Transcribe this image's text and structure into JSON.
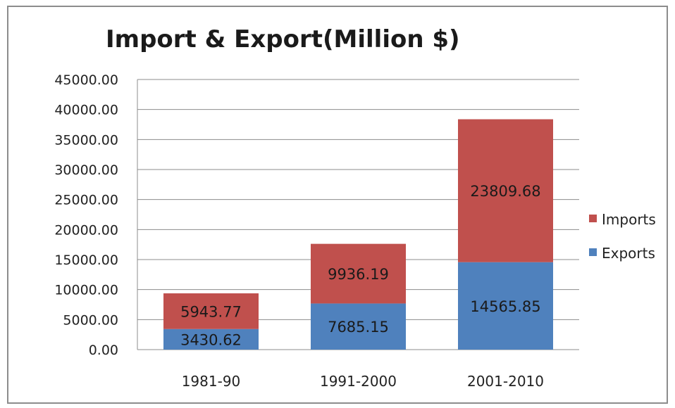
{
  "chart_data": {
    "type": "bar",
    "stacked": true,
    "title": "Import & Export(Million $)",
    "xlabel": "",
    "ylabel": "",
    "categories": [
      "1981-90",
      "1991-2000",
      "2001-2010"
    ],
    "series": [
      {
        "name": "Exports",
        "values": [
          3430.62,
          7685.15,
          14565.85
        ],
        "value_labels": [
          "3430.62",
          "7685.15",
          "14565.85"
        ],
        "color": "#4f81bd"
      },
      {
        "name": "Imports",
        "values": [
          5943.77,
          9936.19,
          23809.68
        ],
        "value_labels": [
          "5943.77",
          "9936.19",
          "23809.68"
        ],
        "color": "#c0504d"
      }
    ],
    "ylim": [
      0,
      45000
    ],
    "yticks": [
      "0.00",
      "5000.00",
      "10000.00",
      "15000.00",
      "20000.00",
      "25000.00",
      "30000.00",
      "35000.00",
      "40000.00",
      "45000.00"
    ],
    "grid": true,
    "legend": {
      "position": "right",
      "order": [
        "Imports",
        "Exports"
      ]
    }
  }
}
